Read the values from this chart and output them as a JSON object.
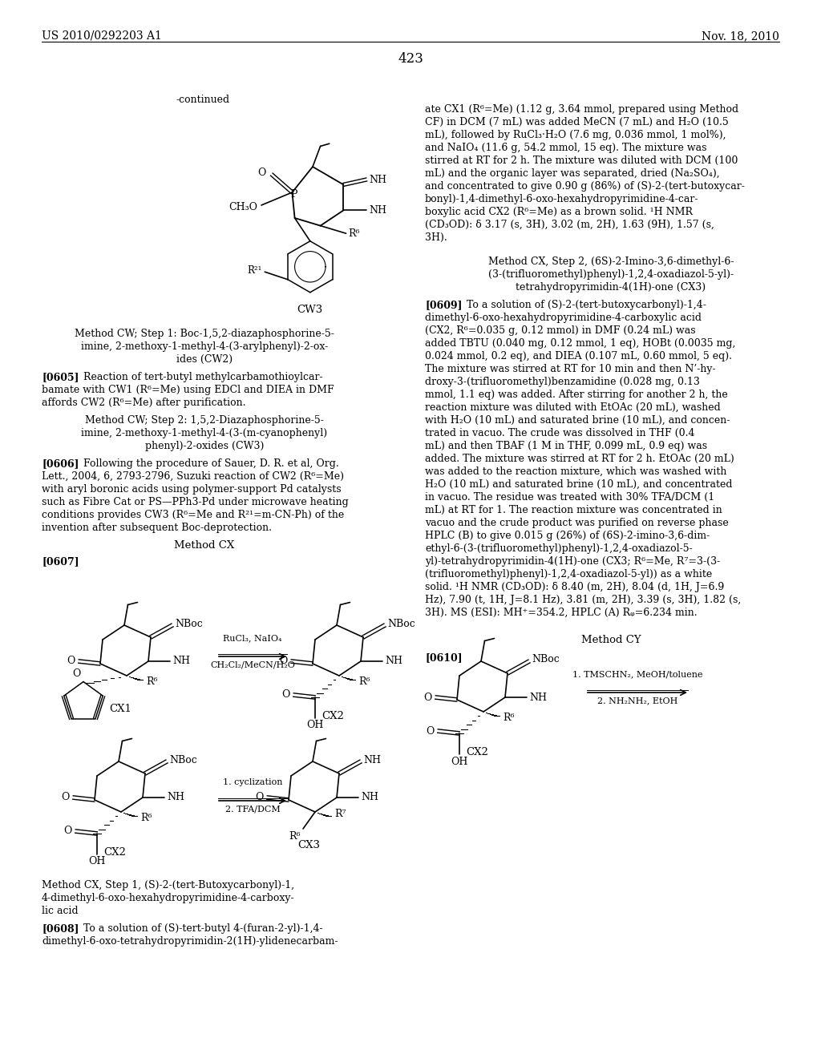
{
  "bg_color": "#ffffff",
  "header_left": "US 2010/0292203 A1",
  "header_right": "Nov. 18, 2010",
  "page_number": "423"
}
